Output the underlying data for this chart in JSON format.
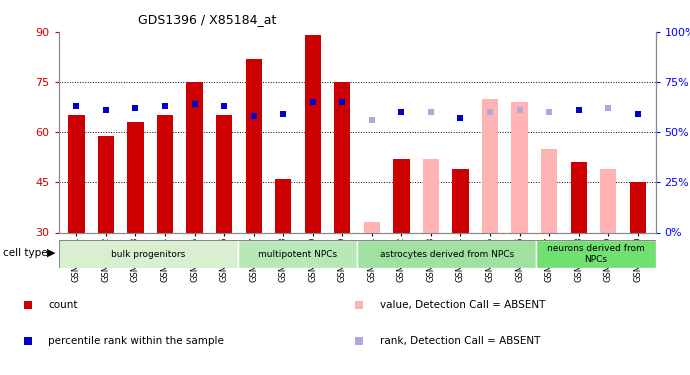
{
  "title": "GDS1396 / X85184_at",
  "samples": [
    "GSM47541",
    "GSM47542",
    "GSM47543",
    "GSM47544",
    "GSM47545",
    "GSM47546",
    "GSM47547",
    "GSM47548",
    "GSM47549",
    "GSM47550",
    "GSM47551",
    "GSM47552",
    "GSM47553",
    "GSM47554",
    "GSM47555",
    "GSM47556",
    "GSM47557",
    "GSM47558",
    "GSM47559",
    "GSM47560"
  ],
  "count_values": [
    65,
    59,
    63,
    65,
    75,
    65,
    82,
    46,
    89,
    75,
    null,
    52,
    null,
    49,
    null,
    null,
    null,
    51,
    null,
    45
  ],
  "count_absent": [
    false,
    false,
    false,
    false,
    false,
    false,
    false,
    false,
    false,
    false,
    true,
    false,
    true,
    false,
    true,
    true,
    true,
    false,
    true,
    false
  ],
  "absent_count_values": [
    null,
    null,
    null,
    null,
    null,
    null,
    null,
    null,
    null,
    null,
    33,
    null,
    52,
    null,
    70,
    69,
    55,
    null,
    49,
    null
  ],
  "rank_values": [
    63,
    61,
    62,
    63,
    64,
    63,
    58,
    59,
    65,
    65,
    56,
    60,
    60,
    57,
    60,
    61,
    60,
    61,
    62,
    59
  ],
  "rank_absent": [
    false,
    false,
    false,
    false,
    false,
    false,
    false,
    false,
    false,
    false,
    true,
    false,
    true,
    false,
    true,
    true,
    true,
    false,
    true,
    false
  ],
  "cell_type_groups": [
    {
      "label": "bulk progenitors",
      "start": 0,
      "end": 6
    },
    {
      "label": "multipotent NPCs",
      "start": 6,
      "end": 10
    },
    {
      "label": "astrocytes derived from NPCs",
      "start": 10,
      "end": 16
    },
    {
      "label": "neurons derived from\nNPCs",
      "start": 16,
      "end": 20
    }
  ],
  "group_colors": [
    "#d8f0d0",
    "#b8e8b8",
    "#a0e0a0",
    "#70e070"
  ],
  "ylim": [
    30,
    90
  ],
  "y2lim": [
    0,
    100
  ],
  "yticks": [
    30,
    45,
    60,
    75,
    90
  ],
  "y2ticks": [
    0,
    25,
    50,
    75,
    100
  ],
  "hlines": [
    45,
    60,
    75
  ],
  "bar_color_present": "#cc0000",
  "bar_color_absent": "#ffb3b3",
  "rank_color_present": "#0000cc",
  "rank_color_absent": "#aaaadd",
  "bar_width": 0.55
}
